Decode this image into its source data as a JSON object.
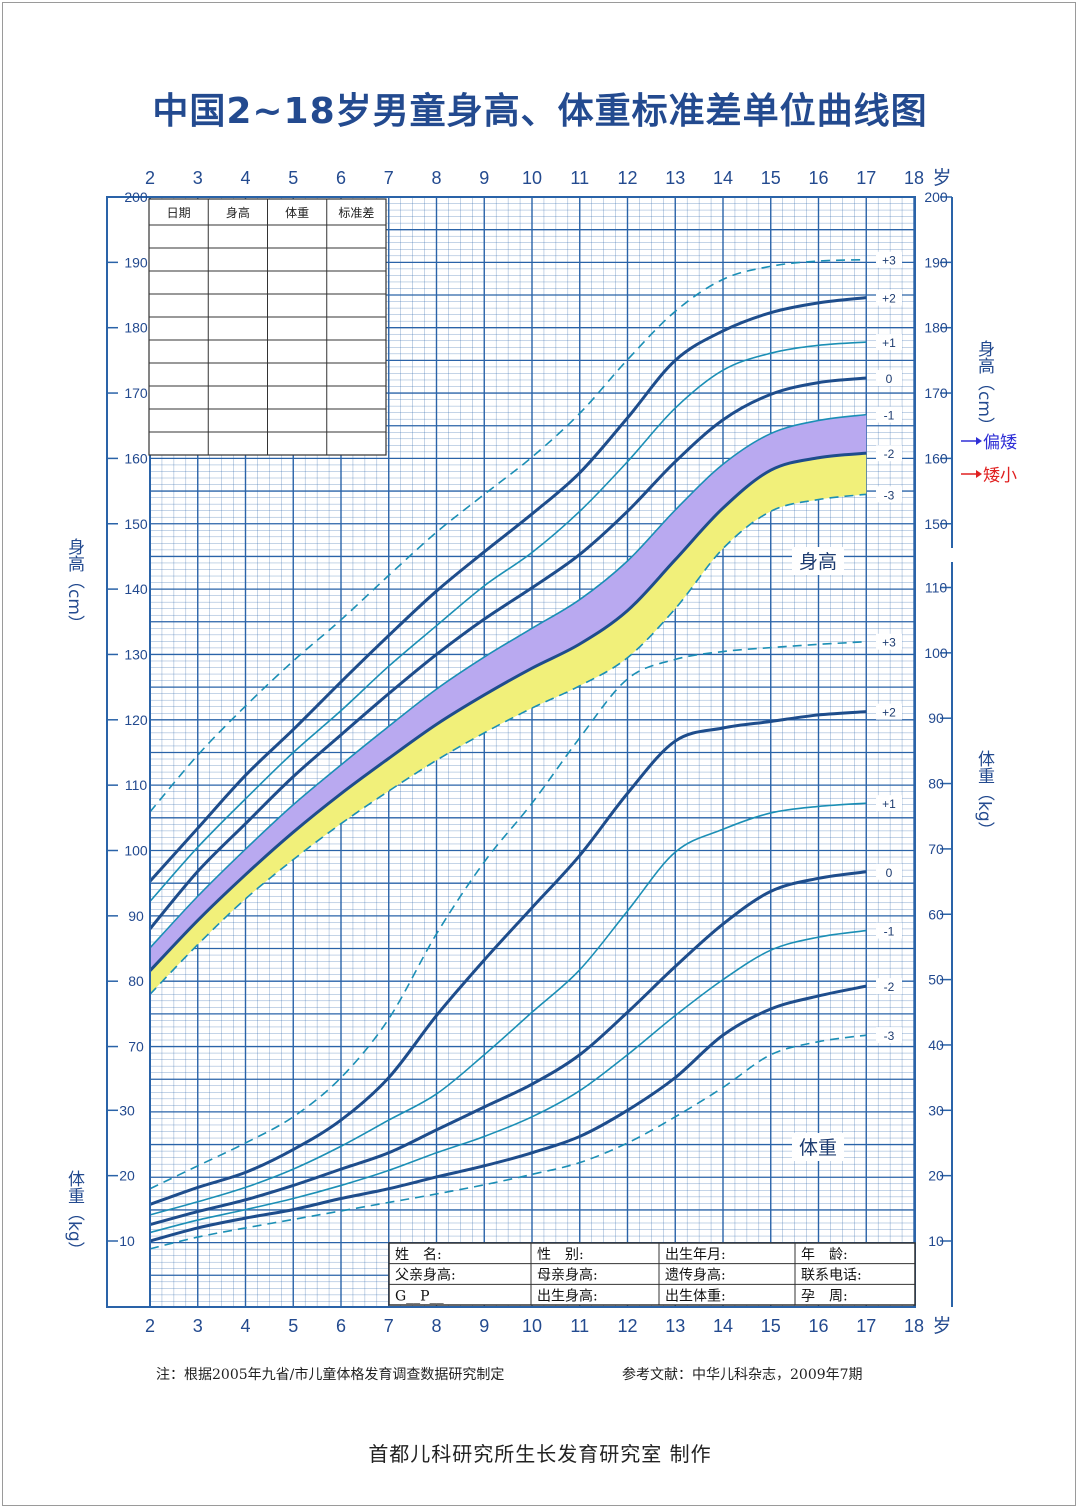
{
  "title": "中国2~18岁男童身高、体重标准差单位曲线图",
  "axis": {
    "age_unit": "岁",
    "age_ticks": [
      2,
      3,
      4,
      5,
      6,
      7,
      8,
      9,
      10,
      11,
      12,
      13,
      14,
      15,
      16,
      17,
      18
    ],
    "height_label": "身高（cm）",
    "weight_label": "体重（kg）",
    "left_height_ticks": [
      70,
      80,
      90,
      100,
      110,
      120,
      130,
      140,
      150,
      160,
      170,
      180,
      190,
      200
    ],
    "left_weight_ticks": [
      10,
      20,
      30
    ],
    "right_height_ticks": [
      150,
      160,
      170,
      180,
      190,
      200
    ],
    "right_weight_ticks": [
      10,
      20,
      30,
      40,
      50,
      60,
      70,
      80,
      90,
      100,
      110
    ]
  },
  "record_table": {
    "headers": [
      "日期",
      "身高",
      "体重",
      "标准差"
    ],
    "rows": 10
  },
  "legend_marks": {
    "short_stature_tendency": "偏矮",
    "short_stature": "矮小"
  },
  "region_labels": {
    "height": "身高",
    "weight": "体重"
  },
  "info_table": [
    [
      "姓　名:",
      "性　别:",
      "出生年月:",
      "年　龄:"
    ],
    [
      "父亲身高:",
      "母亲身高:",
      "遗传身高:",
      "联系电话:"
    ],
    [
      "G__P__",
      "出生身高:",
      "出生体重:",
      "孕　周:"
    ]
  ],
  "notes": {
    "left": "注：根据2005年九省/市儿童体格发育调查数据研究制定",
    "right": "参考文献：中华儿科杂志，2009年7期"
  },
  "maker": "首都儿科研究所生长发育研究室 制作",
  "colors": {
    "grid": "#2a63a8",
    "curve_main": "#1e4d8c",
    "curve_thin": "#1b8fb5",
    "band_minus1_minus2": "#b9a9f0",
    "band_minus2_minus3": "#f1f07a",
    "title": "#234a8f",
    "mark_blue": "#2f2fd6",
    "mark_red": "#e02020"
  },
  "chart_data": {
    "type": "line",
    "x_unit": "岁",
    "xlim": [
      2,
      18
    ],
    "height_chart": {
      "unit": "cm",
      "ylim": [
        70,
        200
      ],
      "x": [
        2,
        3,
        4,
        5,
        6,
        7,
        8,
        9,
        10,
        11,
        12,
        13,
        14,
        15,
        16,
        17
      ],
      "series": [
        {
          "name": "+3",
          "values": [
            105.9,
            114.6,
            122.1,
            129.0,
            135.3,
            142.1,
            148.7,
            154.5,
            160.2,
            166.9,
            175.1,
            182.5,
            187.4,
            189.4,
            190.2,
            190.4
          ]
        },
        {
          "name": "+2",
          "values": [
            95.3,
            103.4,
            111.5,
            118.5,
            125.8,
            132.9,
            139.7,
            145.7,
            151.5,
            157.8,
            166.2,
            175.0,
            179.5,
            182.3,
            183.8,
            184.6
          ]
        },
        {
          "name": "+1",
          "values": [
            92.2,
            100.5,
            107.9,
            115.0,
            121.4,
            128.2,
            134.4,
            140.5,
            145.6,
            151.9,
            159.5,
            167.7,
            173.5,
            176.1,
            177.3,
            177.8
          ]
        },
        {
          "name": "0",
          "values": [
            88.0,
            96.8,
            104.1,
            111.3,
            117.7,
            124.0,
            130.0,
            135.4,
            140.2,
            145.3,
            151.9,
            159.5,
            165.9,
            169.8,
            171.6,
            172.3
          ]
        },
        {
          "name": "-1",
          "values": [
            85.1,
            93.0,
            100.2,
            107.0,
            113.1,
            119.0,
            124.7,
            129.6,
            134.0,
            138.4,
            144.3,
            152.1,
            159.1,
            163.8,
            165.8,
            166.7
          ]
        },
        {
          "name": "-2",
          "values": [
            81.6,
            89.3,
            96.3,
            102.8,
            108.7,
            114.1,
            119.3,
            123.8,
            127.9,
            131.6,
            136.7,
            144.5,
            152.4,
            158.2,
            160.1,
            160.8
          ]
        },
        {
          "name": "-3",
          "values": [
            78.0,
            85.6,
            92.6,
            98.6,
            104.1,
            109.1,
            113.8,
            118.0,
            121.8,
            125.2,
            129.5,
            137.0,
            146.2,
            151.9,
            153.7,
            154.5
          ]
        }
      ]
    },
    "weight_chart": {
      "unit": "kg",
      "ylim": [
        5,
        110
      ],
      "x": [
        2,
        3,
        4,
        5,
        6,
        7,
        8,
        9,
        10,
        11,
        12,
        13,
        14,
        15,
        16,
        17
      ],
      "series": [
        {
          "name": "+3",
          "values": [
            18.0,
            21.5,
            25.0,
            29.0,
            35.0,
            44.0,
            57.0,
            68.0,
            77.0,
            87.0,
            96.0,
            99.0,
            100.2,
            100.8,
            101.3,
            101.7
          ]
        },
        {
          "name": "+2",
          "values": [
            15.6,
            18.2,
            20.5,
            24.0,
            28.5,
            35.0,
            44.5,
            53.0,
            61.0,
            69.0,
            78.5,
            86.5,
            88.5,
            89.5,
            90.5,
            91.0
          ]
        },
        {
          "name": "+1",
          "values": [
            14.0,
            16.0,
            18.2,
            21.0,
            24.5,
            28.5,
            32.5,
            38.5,
            45.0,
            51.5,
            60.5,
            69.5,
            73.0,
            75.5,
            76.5,
            77.0
          ]
        },
        {
          "name": "0",
          "values": [
            12.5,
            14.5,
            16.3,
            18.5,
            21.0,
            23.5,
            27.0,
            30.5,
            34.0,
            38.5,
            45.0,
            52.0,
            58.5,
            63.5,
            65.5,
            66.5
          ]
        },
        {
          "name": "-1",
          "values": [
            11.3,
            13.2,
            14.8,
            16.5,
            18.5,
            20.8,
            23.5,
            26.0,
            29.0,
            33.0,
            38.5,
            44.5,
            50.0,
            54.5,
            56.5,
            57.5
          ]
        },
        {
          "name": "-2",
          "values": [
            10.0,
            12.0,
            13.5,
            14.8,
            16.5,
            18.0,
            19.8,
            21.5,
            23.5,
            26.0,
            30.0,
            35.0,
            41.5,
            45.5,
            47.5,
            49.0
          ]
        },
        {
          "name": "-3",
          "values": [
            8.8,
            10.6,
            12.0,
            13.3,
            14.6,
            15.9,
            17.2,
            18.6,
            20.2,
            22.0,
            25.0,
            29.0,
            33.5,
            38.5,
            40.5,
            41.5
          ]
        }
      ]
    }
  }
}
